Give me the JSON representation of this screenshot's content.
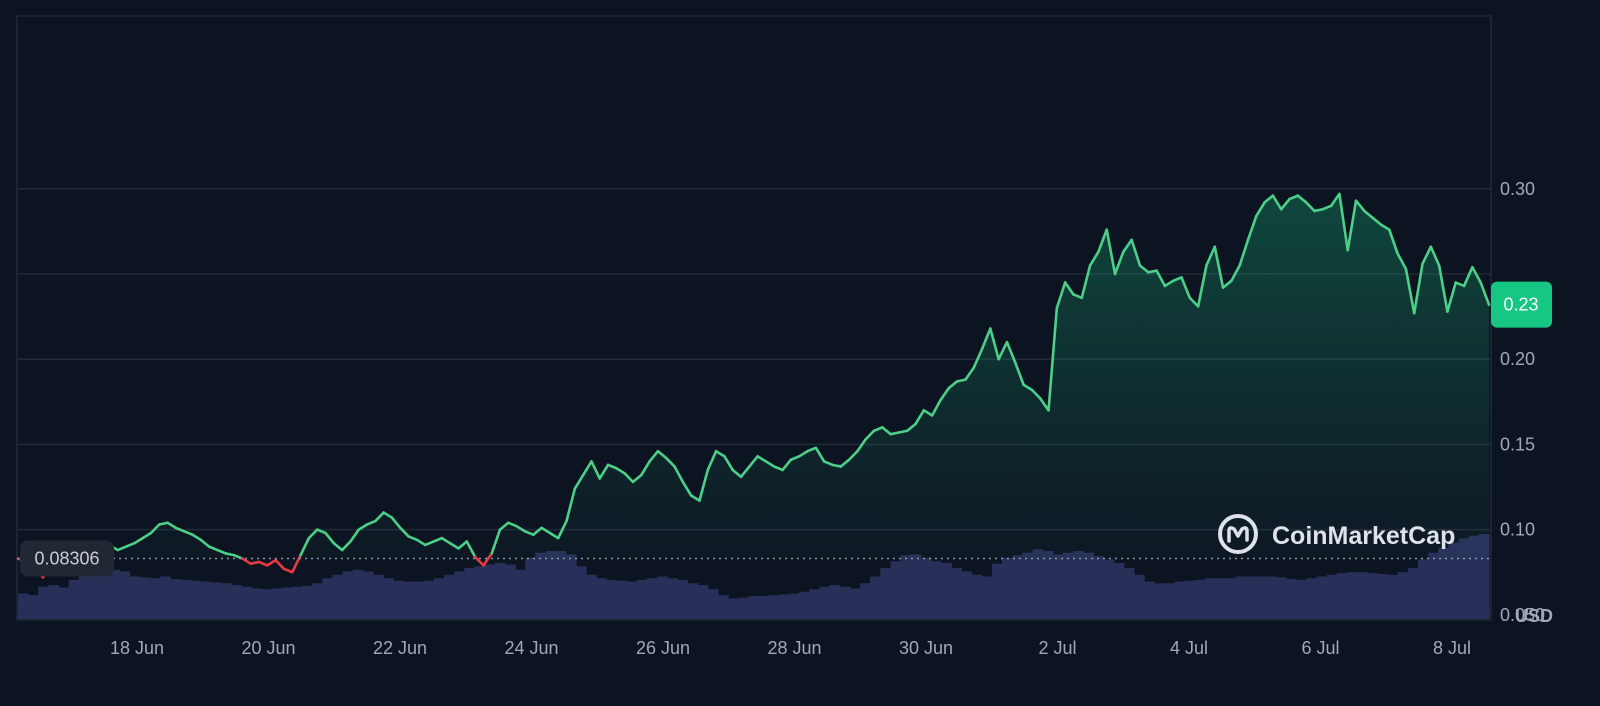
{
  "brand": {
    "name": "CoinMarketCap",
    "icon": "coinmarketcap-logo-icon"
  },
  "chart_data": {
    "type": "area",
    "x_ticks": [
      "18 Jun",
      "20 Jun",
      "22 Jun",
      "24 Jun",
      "26 Jun",
      "28 Jun",
      "30 Jun",
      "2 Jul",
      "4 Jul",
      "6 Jul",
      "8 Jul"
    ],
    "y_ticks": [
      "0.050",
      "0.10",
      "0.15",
      "0.20",
      "0.30"
    ],
    "ylim": [
      0,
      0.35
    ],
    "unit": "USD",
    "open_price": {
      "label": "0.08306",
      "value": 0.08306
    },
    "current_price": {
      "label": "0.23",
      "value": 0.232
    },
    "series": [
      {
        "values": [
          0.083,
          0.081,
          0.078,
          0.072,
          0.079,
          0.082,
          0.084,
          0.083,
          0.085,
          0.087,
          0.089,
          0.091,
          0.088,
          0.09,
          0.092,
          0.095,
          0.098,
          0.103,
          0.104,
          0.101,
          0.099,
          0.097,
          0.094,
          0.09,
          0.088,
          0.086,
          0.085,
          0.083,
          0.08,
          0.081,
          0.079,
          0.082,
          0.077,
          0.075,
          0.085,
          0.095,
          0.1,
          0.098,
          0.092,
          0.088,
          0.093,
          0.1,
          0.103,
          0.105,
          0.11,
          0.107,
          0.101,
          0.096,
          0.094,
          0.091,
          0.093,
          0.095,
          0.092,
          0.089,
          0.093,
          0.084,
          0.079,
          0.086,
          0.1,
          0.104,
          0.102,
          0.099,
          0.097,
          0.101,
          0.098,
          0.095,
          0.105,
          0.124,
          0.132,
          0.14,
          0.13,
          0.138,
          0.136,
          0.133,
          0.128,
          0.132,
          0.14,
          0.146,
          0.142,
          0.137,
          0.128,
          0.12,
          0.117,
          0.135,
          0.146,
          0.143,
          0.135,
          0.131,
          0.137,
          0.143,
          0.14,
          0.137,
          0.135,
          0.141,
          0.143,
          0.146,
          0.148,
          0.14,
          0.138,
          0.137,
          0.141,
          0.146,
          0.153,
          0.158,
          0.16,
          0.156,
          0.157,
          0.158,
          0.162,
          0.17,
          0.167,
          0.176,
          0.183,
          0.187,
          0.188,
          0.195,
          0.206,
          0.218,
          0.2,
          0.21,
          0.198,
          0.185,
          0.182,
          0.177,
          0.17,
          0.23,
          0.245,
          0.238,
          0.236,
          0.255,
          0.263,
          0.276,
          0.25,
          0.263,
          0.27,
          0.255,
          0.251,
          0.252,
          0.243,
          0.246,
          0.248,
          0.236,
          0.231,
          0.255,
          0.266,
          0.242,
          0.246,
          0.255,
          0.27,
          0.284,
          0.292,
          0.296,
          0.288,
          0.294,
          0.296,
          0.292,
          0.287,
          0.288,
          0.29,
          0.297,
          0.264,
          0.293,
          0.287,
          0.283,
          0.279,
          0.276,
          0.262,
          0.253,
          0.227,
          0.256,
          0.266,
          0.255,
          0.228,
          0.245,
          0.243,
          0.254,
          0.245,
          0.232
        ]
      }
    ],
    "volume": {
      "values": [
        0.3,
        0.28,
        0.38,
        0.4,
        0.37,
        0.46,
        0.5,
        0.52,
        0.54,
        0.58,
        0.56,
        0.5,
        0.49,
        0.48,
        0.5,
        0.47,
        0.46,
        0.45,
        0.44,
        0.43,
        0.42,
        0.4,
        0.38,
        0.36,
        0.35,
        0.36,
        0.37,
        0.38,
        0.39,
        0.42,
        0.48,
        0.52,
        0.56,
        0.58,
        0.56,
        0.52,
        0.48,
        0.45,
        0.44,
        0.44,
        0.45,
        0.48,
        0.52,
        0.56,
        0.6,
        0.62,
        0.64,
        0.66,
        0.64,
        0.58,
        0.72,
        0.78,
        0.8,
        0.8,
        0.76,
        0.62,
        0.52,
        0.48,
        0.46,
        0.45,
        0.44,
        0.46,
        0.48,
        0.5,
        0.48,
        0.46,
        0.42,
        0.4,
        0.35,
        0.28,
        0.24,
        0.25,
        0.27,
        0.27,
        0.28,
        0.29,
        0.3,
        0.32,
        0.35,
        0.38,
        0.4,
        0.38,
        0.36,
        0.42,
        0.5,
        0.6,
        0.68,
        0.75,
        0.76,
        0.72,
        0.68,
        0.66,
        0.6,
        0.56,
        0.52,
        0.5,
        0.65,
        0.72,
        0.75,
        0.78,
        0.82,
        0.8,
        0.76,
        0.78,
        0.8,
        0.78,
        0.74,
        0.7,
        0.66,
        0.6,
        0.52,
        0.44,
        0.42,
        0.42,
        0.44,
        0.45,
        0.46,
        0.48,
        0.48,
        0.48,
        0.5,
        0.5,
        0.5,
        0.5,
        0.49,
        0.47,
        0.46,
        0.48,
        0.5,
        0.52,
        0.54,
        0.55,
        0.55,
        0.54,
        0.53,
        0.52,
        0.55,
        0.6,
        0.7,
        0.78,
        0.84,
        0.9,
        0.95,
        0.98,
        1.0
      ]
    }
  }
}
